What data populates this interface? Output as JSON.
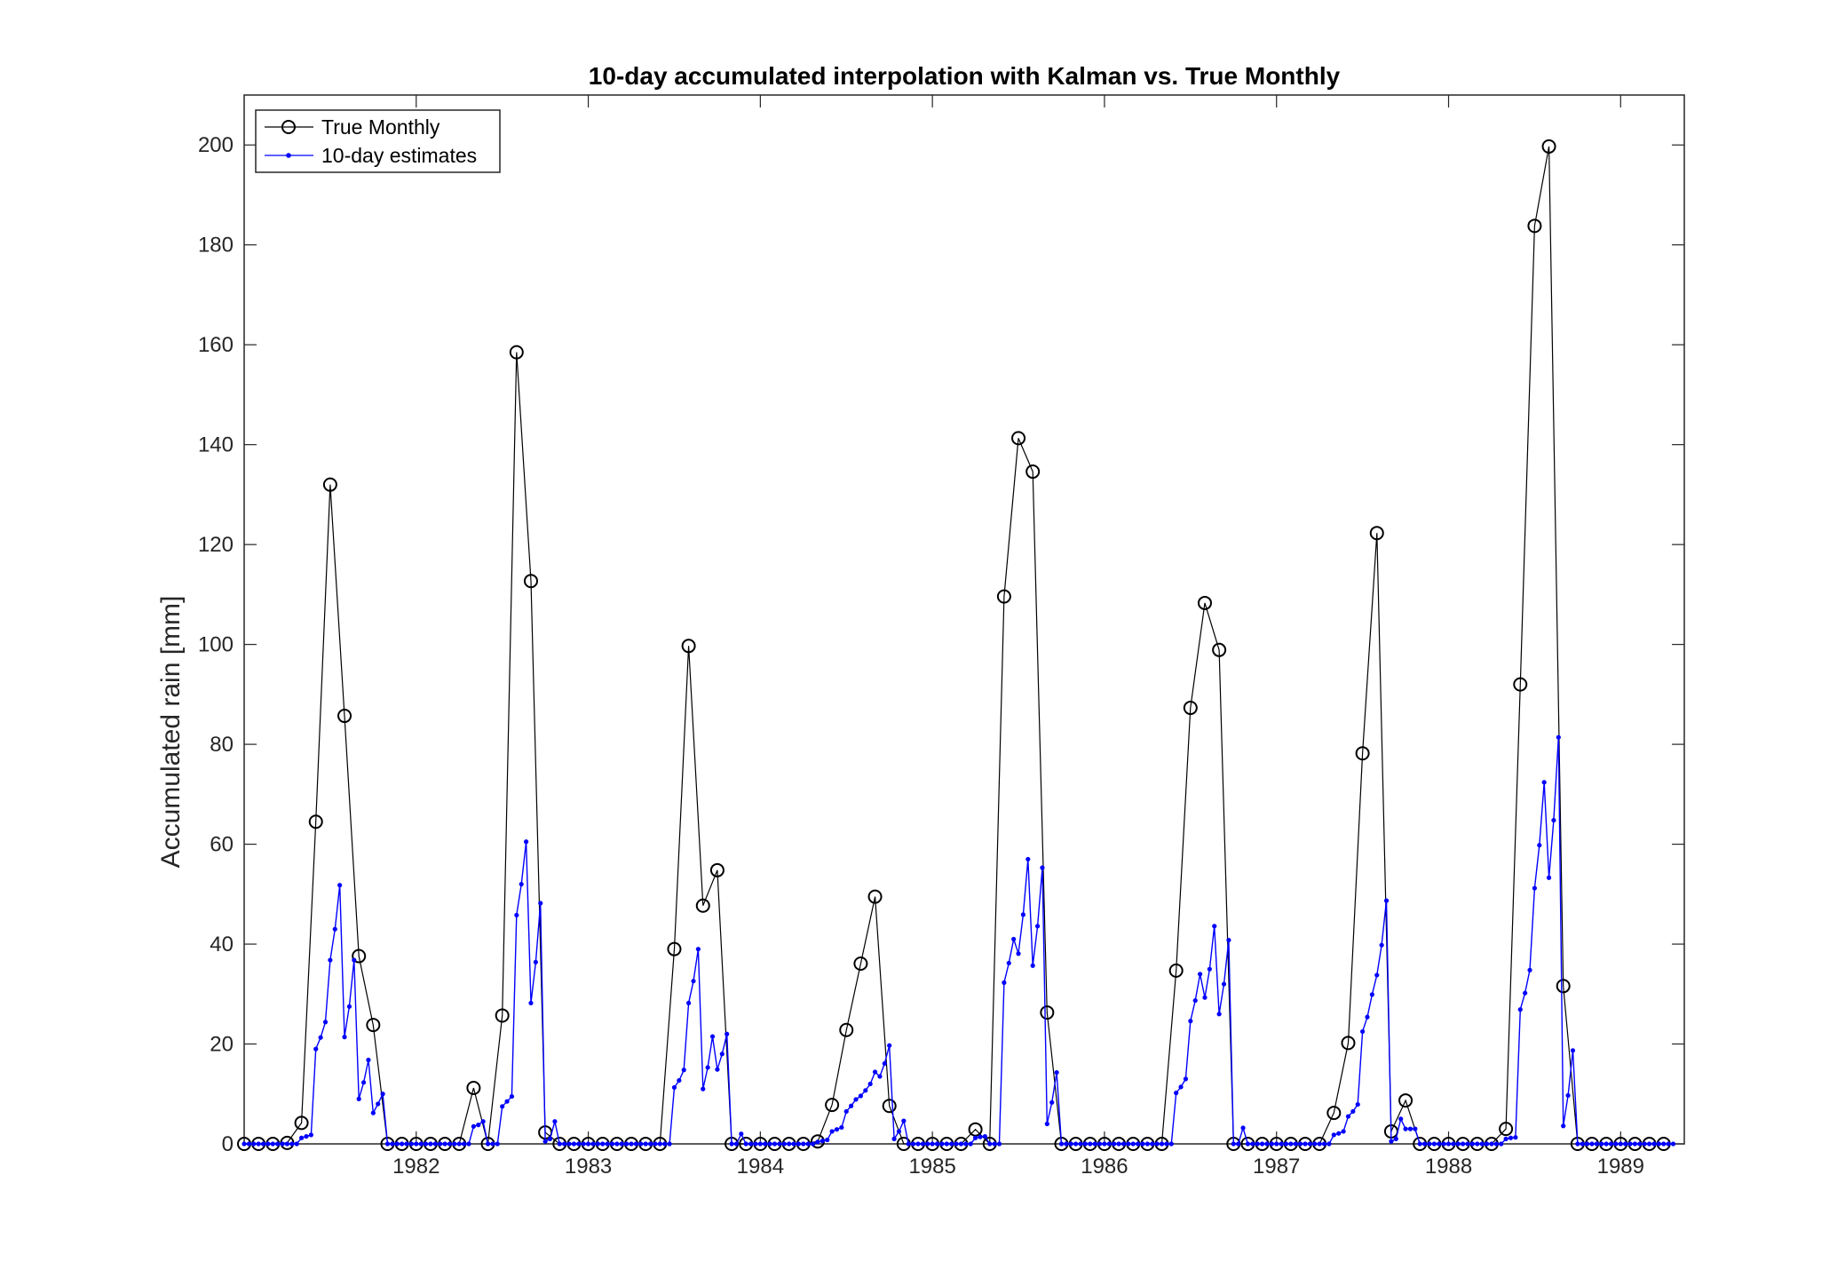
{
  "chart_data": {
    "type": "line",
    "title": "10-day accumulated interpolation with Kalman vs. True Monthly",
    "xlabel": "",
    "ylabel": "Accumulated rain  [mm]",
    "xlim": [
      1981.0,
      1989.37
    ],
    "ylim": [
      0,
      210
    ],
    "x_ticks": [
      1982,
      1983,
      1984,
      1985,
      1986,
      1987,
      1988,
      1989
    ],
    "y_ticks": [
      0,
      20,
      40,
      60,
      80,
      100,
      120,
      140,
      160,
      180,
      200
    ],
    "grid": false,
    "legend_position": "top-left",
    "series": [
      {
        "name": "True Monthly",
        "color": "#000000",
        "marker": "circle",
        "x_start": 1981.0,
        "x_step_months": 1,
        "values": [
          0,
          0,
          0,
          0.2,
          4.2,
          64.5,
          132,
          85.7,
          37.6,
          23.8,
          0,
          0,
          0,
          0,
          0,
          0,
          11.2,
          0,
          25.7,
          158.5,
          112.7,
          2.3,
          0,
          0,
          0,
          0,
          0,
          0,
          0,
          0,
          39,
          99.7,
          47.7,
          54.8,
          0,
          0,
          0,
          0,
          0,
          0,
          0.5,
          7.8,
          22.8,
          36.1,
          49.5,
          7.6,
          0,
          0,
          0,
          0,
          0,
          2.9,
          0,
          109.6,
          141.3,
          134.6,
          26.3,
          0,
          0,
          0,
          0,
          0,
          0,
          0,
          0,
          34.7,
          87.3,
          108.3,
          98.9,
          0,
          0,
          0,
          0,
          0,
          0,
          0,
          6.2,
          20.2,
          78.2,
          122.3,
          2.5,
          8.7,
          0,
          0,
          0,
          0,
          0,
          0,
          3,
          92,
          183.8,
          199.7,
          31.6,
          0,
          0,
          0,
          0,
          0,
          0,
          0
        ]
      },
      {
        "name": "10-day estimates",
        "color": "#0000ff",
        "marker": "point",
        "x_start": 1981.0,
        "x_step_dekads": 1,
        "values": [
          0,
          0,
          0,
          0,
          0,
          0,
          0,
          0,
          0,
          0,
          0,
          0,
          1.2,
          1.5,
          1.8,
          19,
          21.3,
          24.4,
          36.8,
          43,
          51.8,
          21.4,
          27.5,
          36.8,
          9,
          12.3,
          16.8,
          6.2,
          8,
          10,
          0,
          0,
          0,
          0,
          0,
          0,
          0,
          0,
          0,
          0,
          0,
          0,
          0,
          0,
          0,
          0,
          0,
          0,
          3.5,
          3.8,
          4.5,
          0,
          0,
          0,
          7.5,
          8.5,
          9.5,
          45.8,
          52,
          60.5,
          28.2,
          36.4,
          48.2,
          0.5,
          1,
          4.5,
          0,
          0,
          0,
          0,
          0,
          0,
          0,
          0,
          0,
          0,
          0,
          0,
          0,
          0,
          0,
          0,
          0,
          0,
          0,
          0,
          0,
          0,
          0,
          0,
          11.3,
          12.7,
          14.8,
          28.2,
          32.6,
          39,
          11,
          15.3,
          21.5,
          14.9,
          18,
          22,
          0,
          0,
          2,
          0,
          0,
          0,
          0,
          0,
          0,
          0,
          0,
          0,
          0,
          0,
          0,
          0,
          0,
          0,
          0.4,
          0.6,
          0.8,
          2.5,
          2.9,
          3.3,
          6.5,
          7.6,
          8.9,
          9.6,
          10.7,
          12,
          14.4,
          13.5,
          16.1,
          19.7,
          1,
          2.5,
          4.6,
          0,
          0,
          0,
          0,
          0,
          0,
          0,
          0,
          0,
          0,
          0,
          0,
          0,
          0,
          1.2,
          1.4,
          1.5,
          0,
          0,
          0,
          32.3,
          36.2,
          41,
          38.1,
          45.9,
          57,
          35.7,
          43.6,
          55.3,
          4,
          8.3,
          14.3,
          0,
          0,
          0,
          0,
          0,
          0,
          0,
          0,
          0,
          0,
          0,
          0,
          0,
          0,
          0,
          0,
          0,
          0,
          0,
          0,
          0,
          0,
          0,
          0,
          10.2,
          11.4,
          13,
          24.6,
          28.7,
          34,
          29.3,
          35,
          43.6,
          26,
          32,
          40.8,
          0,
          0,
          3.2,
          0,
          0,
          0,
          0,
          0,
          0,
          0,
          0,
          0,
          0,
          0,
          0,
          0,
          0,
          0,
          0,
          0,
          0,
          1.8,
          2.1,
          2.5,
          5.5,
          6.5,
          7.9,
          22.5,
          25.4,
          29.9,
          33.8,
          39.8,
          48.7,
          0.5,
          1,
          5,
          3,
          3,
          3,
          0,
          0,
          0,
          0,
          0,
          0,
          0,
          0,
          0,
          0,
          0,
          0,
          0,
          0,
          0,
          0,
          0,
          0,
          1,
          1.2,
          1.3,
          26.9,
          30.2,
          34.8,
          51.2,
          59.8,
          72.4,
          53.3,
          64.8,
          81.4,
          3.6,
          9.7,
          18.7,
          0,
          0,
          0,
          0,
          0,
          0,
          0,
          0,
          0,
          0,
          0,
          0,
          0,
          0,
          0,
          0,
          0,
          0,
          0,
          0,
          0
        ]
      }
    ]
  }
}
